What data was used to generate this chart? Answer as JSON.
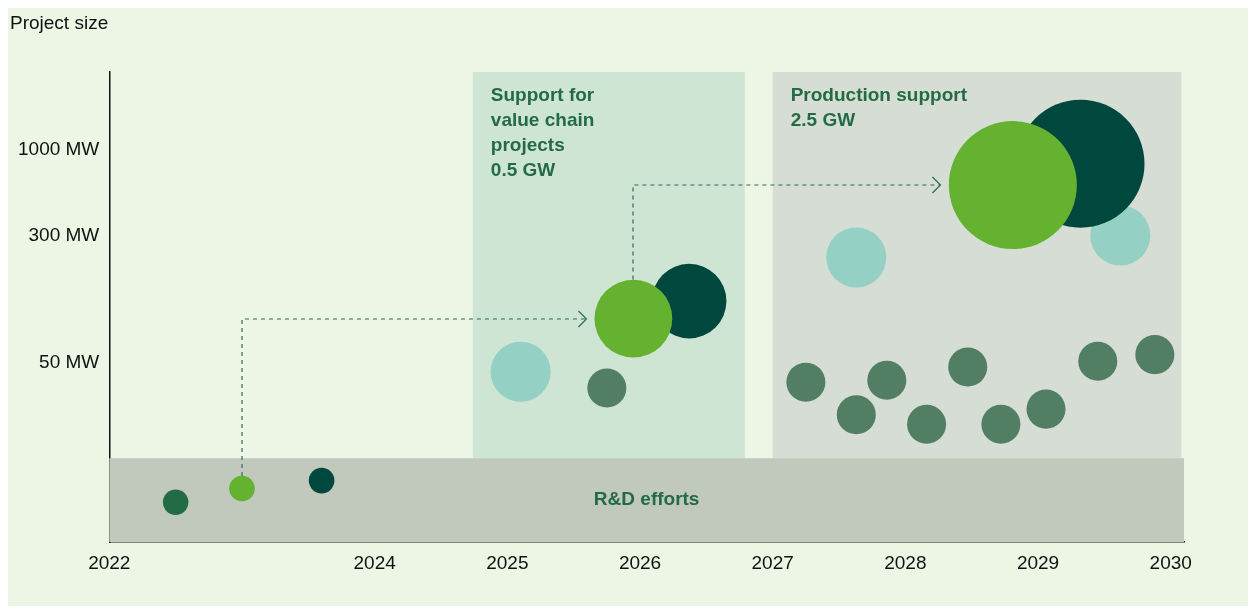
{
  "chart_data": {
    "type": "bubble",
    "ylabel": "Project size",
    "log": "y",
    "xlim": [
      2022,
      2030.1
    ],
    "xticks": [
      2022,
      2024,
      2025,
      2026,
      2027,
      2028,
      2029,
      2030
    ],
    "ylim": [
      4,
      3000
    ],
    "yticks": [
      {
        "value": 50,
        "label": "50 MW"
      },
      {
        "value": 300,
        "label": "300 MW"
      },
      {
        "value": 1000,
        "label": "1000 MW"
      }
    ],
    "grid": false,
    "legend": false,
    "bands": [
      {
        "axis": "x",
        "from": 2024.74,
        "to": 2026.79,
        "label": "Support for\nvalue chain\nprojects\n0.5 GW",
        "color": "#cfe5d3"
      },
      {
        "axis": "x",
        "from": 2027,
        "to": 2030.08,
        "label": "Production support\n2.5 GW",
        "color": "#d5ddd4"
      },
      {
        "axis": "y",
        "from": 4,
        "to": 13,
        "label": "R&D efforts",
        "color": "#c0c9bc"
      }
    ],
    "series": [
      {
        "color": "#64b22f",
        "x": [
          2023.0,
          2025.95,
          2028.81
        ],
        "values": [
          8.5,
          93,
          610
        ],
        "sizes": [
          0.04,
          0.37,
          1
        ]
      },
      {
        "color": "#00473e",
        "x": [
          2023.6,
          2026.37,
          2029.32
        ],
        "values": [
          9.5,
          119,
          825
        ],
        "sizes": [
          0.04,
          0.34,
          1
        ]
      },
      {
        "color": "#236b45",
        "x": [
          2022.5
        ],
        "values": [
          7
        ],
        "sizes": [
          0.04
        ]
      },
      {
        "color": "#94d0c4",
        "x": [
          2025.1,
          2027.63,
          2029.62
        ],
        "values": [
          44,
          220,
          300
        ],
        "sizes": [
          0.22,
          0.22,
          0.22
        ]
      },
      {
        "color": "#527e63",
        "x": [
          2025.75,
          2027.25,
          2027.63,
          2027.86,
          2028.16,
          2028.47,
          2028.72,
          2029.06,
          2029.45,
          2029.88
        ],
        "values": [
          35,
          38,
          24,
          39,
          21,
          47,
          21,
          26,
          51,
          56
        ],
        "sizes": [
          0.093,
          0.093,
          0.093,
          0.093,
          0.093,
          0.093,
          0.093,
          0.093,
          0.093,
          0.093
        ]
      }
    ]
  }
}
